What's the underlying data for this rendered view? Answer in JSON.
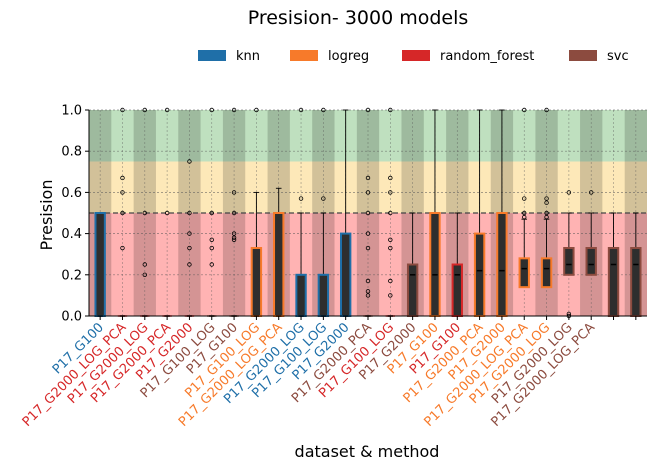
{
  "chart_data": {
    "type": "box",
    "title": "Presision- 3000 models",
    "xlabel": "dataset & method",
    "ylabel": "Presision",
    "ylim": [
      0.0,
      1.0
    ],
    "yticks": [
      "0.0",
      "0.2",
      "0.4",
      "0.6",
      "0.8",
      "1.0"
    ],
    "grid": true,
    "legend_position": "top",
    "legend": [
      {
        "name": "knn",
        "color": "#1f6fa8"
      },
      {
        "name": "logreg",
        "color": "#f77a2a"
      },
      {
        "name": "random_forest",
        "color": "#d62728"
      },
      {
        "name": "svc",
        "color": "#8c4b3f"
      }
    ],
    "background_bands": [
      {
        "from": 0.0,
        "to": 0.5,
        "color": "#ffb3b3"
      },
      {
        "from": 0.5,
        "to": 0.75,
        "color": "#fde8b8"
      },
      {
        "from": 0.75,
        "to": 1.0,
        "color": "#bfe0bf"
      }
    ],
    "threshold_line": 0.5,
    "categories": [
      {
        "label": "P17_G100",
        "method": "knn",
        "q1": 0.0,
        "median": 0.0,
        "q3": 0.5,
        "whislo": 0.0,
        "whishi": 0.5,
        "fliers": [],
        "dark": true
      },
      {
        "label": "P17_G2000_LOG_PCA",
        "method": "random_forest",
        "q1": 0.0,
        "median": 0.0,
        "q3": 0.0,
        "whislo": 0.0,
        "whishi": 0.0,
        "fliers": [
          1.0,
          0.67,
          0.6,
          0.5,
          0.33
        ],
        "dark": false
      },
      {
        "label": "P17_G2000_LOG",
        "method": "random_forest",
        "q1": 0.0,
        "median": 0.0,
        "q3": 0.0,
        "whislo": 0.0,
        "whishi": 0.0,
        "fliers": [
          1.0,
          0.5,
          0.25,
          0.2
        ],
        "dark": true
      },
      {
        "label": "P17_G2000_PCA",
        "method": "random_forest",
        "q1": 0.0,
        "median": 0.0,
        "q3": 0.0,
        "whislo": 0.0,
        "whishi": 0.0,
        "fliers": [
          1.0,
          0.5
        ],
        "dark": false
      },
      {
        "label": "P17_G2000",
        "method": "random_forest",
        "q1": 0.0,
        "median": 0.0,
        "q3": 0.0,
        "whislo": 0.0,
        "whishi": 0.0,
        "fliers": [
          0.75,
          0.5,
          0.4,
          0.33,
          0.25
        ],
        "dark": true
      },
      {
        "label": "P17_G100_LOG",
        "method": "svc",
        "q1": 0.0,
        "median": 0.0,
        "q3": 0.0,
        "whislo": 0.0,
        "whishi": 0.0,
        "fliers": [
          1.0,
          0.5,
          0.37,
          0.33,
          0.25
        ],
        "dark": false
      },
      {
        "label": "P17_G100",
        "method": "svc",
        "q1": 0.0,
        "median": 0.0,
        "q3": 0.0,
        "whislo": 0.0,
        "whishi": 0.0,
        "fliers": [
          1.0,
          0.6,
          0.5,
          0.4,
          0.38,
          0.37
        ],
        "dark": true
      },
      {
        "label": "P17_G100_LOG",
        "method": "logreg",
        "q1": 0.0,
        "median": 0.0,
        "q3": 0.33,
        "whislo": 0.0,
        "whishi": 0.6,
        "fliers": [
          1.0
        ],
        "dark": false
      },
      {
        "label": "P17_G2000_LOG_PCA",
        "method": "logreg",
        "q1": 0.0,
        "median": 0.0,
        "q3": 0.5,
        "whislo": 0.0,
        "whishi": 0.62,
        "fliers": [],
        "dark": true
      },
      {
        "label": "P17_G2000_LOG",
        "method": "knn",
        "q1": 0.0,
        "median": 0.0,
        "q3": 0.2,
        "whislo": 0.0,
        "whishi": 0.5,
        "fliers": [
          1.0,
          0.57
        ],
        "dark": false
      },
      {
        "label": "P17_G100_LOG",
        "method": "knn",
        "q1": 0.0,
        "median": 0.0,
        "q3": 0.2,
        "whislo": 0.0,
        "whishi": 0.5,
        "fliers": [
          1.0,
          0.57
        ],
        "dark": true
      },
      {
        "label": "P17_G2000",
        "method": "knn",
        "q1": 0.0,
        "median": 0.0,
        "q3": 0.4,
        "whislo": 0.0,
        "whishi": 1.0,
        "fliers": [],
        "dark": false
      },
      {
        "label": "P17_G2000_PCA",
        "method": "svc",
        "q1": 0.0,
        "median": 0.0,
        "q3": 0.0,
        "whislo": 0.0,
        "whishi": 0.0,
        "fliers": [
          1.0,
          0.67,
          0.6,
          0.5,
          0.4,
          0.33,
          0.17,
          0.12,
          0.1
        ],
        "dark": true
      },
      {
        "label": "P17_G100_LOG",
        "method": "random_forest",
        "q1": 0.0,
        "median": 0.0,
        "q3": 0.0,
        "whislo": 0.0,
        "whishi": 0.0,
        "fliers": [
          1.0,
          0.67,
          0.6,
          0.5,
          0.37,
          0.33,
          0.17,
          0.1
        ],
        "dark": false
      },
      {
        "label": "P17_G2000",
        "method": "svc",
        "q1": 0.0,
        "median": 0.2,
        "q3": 0.25,
        "whislo": 0.0,
        "whishi": 0.5,
        "fliers": [],
        "dark": true
      },
      {
        "label": "P17_G100",
        "method": "logreg",
        "q1": 0.0,
        "median": 0.2,
        "q3": 0.5,
        "whislo": 0.0,
        "whishi": 1.0,
        "fliers": [],
        "dark": false
      },
      {
        "label": "P17_G100",
        "method": "random_forest",
        "q1": 0.0,
        "median": 0.2,
        "q3": 0.25,
        "whislo": 0.0,
        "whishi": 0.5,
        "fliers": [],
        "dark": true
      },
      {
        "label": "P17_G2000_PCA",
        "method": "logreg",
        "q1": 0.0,
        "median": 0.22,
        "q3": 0.4,
        "whislo": 0.0,
        "whishi": 1.0,
        "fliers": [],
        "dark": false
      },
      {
        "label": "P17_G2000",
        "method": "logreg",
        "q1": 0.0,
        "median": 0.22,
        "q3": 0.5,
        "whislo": 0.0,
        "whishi": 1.0,
        "fliers": [],
        "dark": true
      },
      {
        "label": "P17_G2000_LOG_PCA",
        "method": "logreg",
        "q1": 0.14,
        "median": 0.23,
        "q3": 0.28,
        "whislo": 0.0,
        "whishi": 0.47,
        "fliers": [
          1.0,
          0.57,
          0.5,
          0.48
        ],
        "dark": false
      },
      {
        "label": "P17_G2000_LOG",
        "method": "logreg",
        "q1": 0.14,
        "median": 0.23,
        "q3": 0.28,
        "whislo": 0.0,
        "whishi": 0.47,
        "fliers": [
          1.0,
          0.57,
          0.55,
          0.5,
          0.48
        ],
        "dark": true
      },
      {
        "label": "P17_G2000_LOG",
        "method": "svc",
        "q1": 0.2,
        "median": 0.25,
        "q3": 0.33,
        "whislo": 0.0,
        "whishi": 0.5,
        "fliers": [
          0.6,
          0.01,
          0.0
        ],
        "dark": false
      },
      {
        "label": "P17_G2000_LOG_PCA",
        "method": "svc",
        "q1": 0.2,
        "median": 0.25,
        "q3": 0.33,
        "whislo": 0.0,
        "whishi": 0.5,
        "fliers": [
          0.6
        ],
        "dark": true
      },
      {
        "label": "",
        "method": "svc",
        "q1": 0.0,
        "median": 0.25,
        "q3": 0.33,
        "whislo": 0.0,
        "whishi": 0.5,
        "fliers": [],
        "dark": false
      },
      {
        "label": "",
        "method": "svc",
        "q1": 0.0,
        "median": 0.25,
        "q3": 0.33,
        "whislo": 0.0,
        "whishi": 0.5,
        "fliers": [],
        "dark": true
      }
    ]
  }
}
